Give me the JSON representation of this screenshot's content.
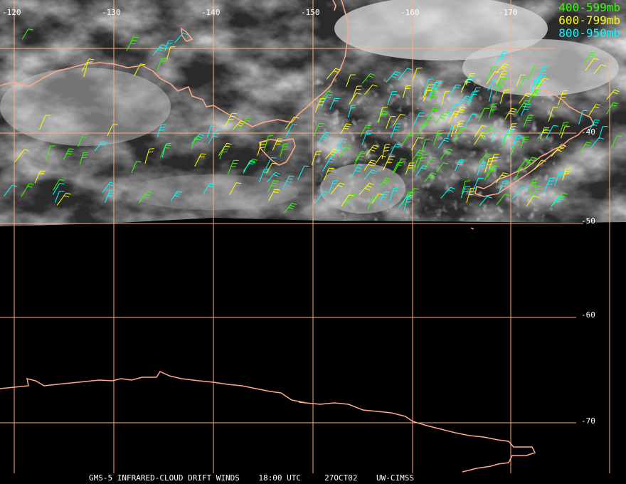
{
  "footer": {
    "source": "GMS-5 INFRARED-CLOUD DRIFT WINDS",
    "time": "18:00 UTC",
    "date": "27OCT02",
    "credit": "UW-CIMSS"
  },
  "legend": [
    {
      "label": "400-599mb",
      "color": "#33ff00"
    },
    {
      "label": "600-799mb",
      "color": "#ffff00"
    },
    {
      "label": "800-950mb",
      "color": "#00ffff"
    }
  ],
  "longitude_labels": [
    "-120",
    "-130",
    "-140",
    "-150",
    "-160",
    "-170"
  ],
  "latitude_labels": [
    "-40",
    "-50",
    "-60",
    "-70"
  ],
  "colors": {
    "coastline": "#ffaa88",
    "grid": "#ffaa88",
    "background": "#000000"
  }
}
